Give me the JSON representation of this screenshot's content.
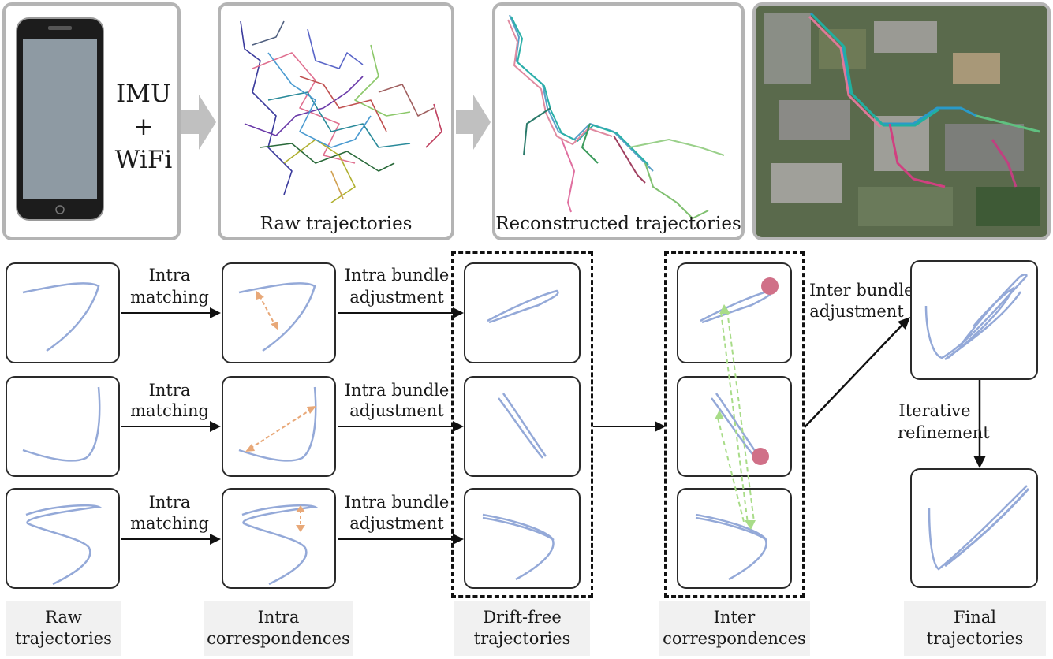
{
  "pipeline": {
    "device_label": [
      "IMU",
      "+",
      "WiFi"
    ],
    "raw_caption": "Raw trajectories",
    "reconstructed_caption": "Reconstructed trajectories"
  },
  "arrows": {
    "intra_matching": [
      "Intra",
      "matching"
    ],
    "intra_bundle": [
      "Intra bundle",
      "adjustment"
    ],
    "inter_bundle": [
      "Inter bundle",
      "adjustment"
    ],
    "iterative": [
      "Iterative",
      "refinement"
    ]
  },
  "captions": {
    "raw": [
      "Raw",
      "trajectories"
    ],
    "intra": [
      "Intra",
      "correspondences"
    ],
    "drift_free": [
      "Drift-free",
      "trajectories"
    ],
    "inter": [
      "Inter",
      "correspondences"
    ],
    "final": [
      "Final",
      "trajectories"
    ]
  },
  "colors": {
    "trajectory": "#94a9d8",
    "intra_match": "#e8a878",
    "inter_match": "#a8dc88",
    "anchor": "#d07088",
    "panel_border": "#b4b4b4"
  }
}
